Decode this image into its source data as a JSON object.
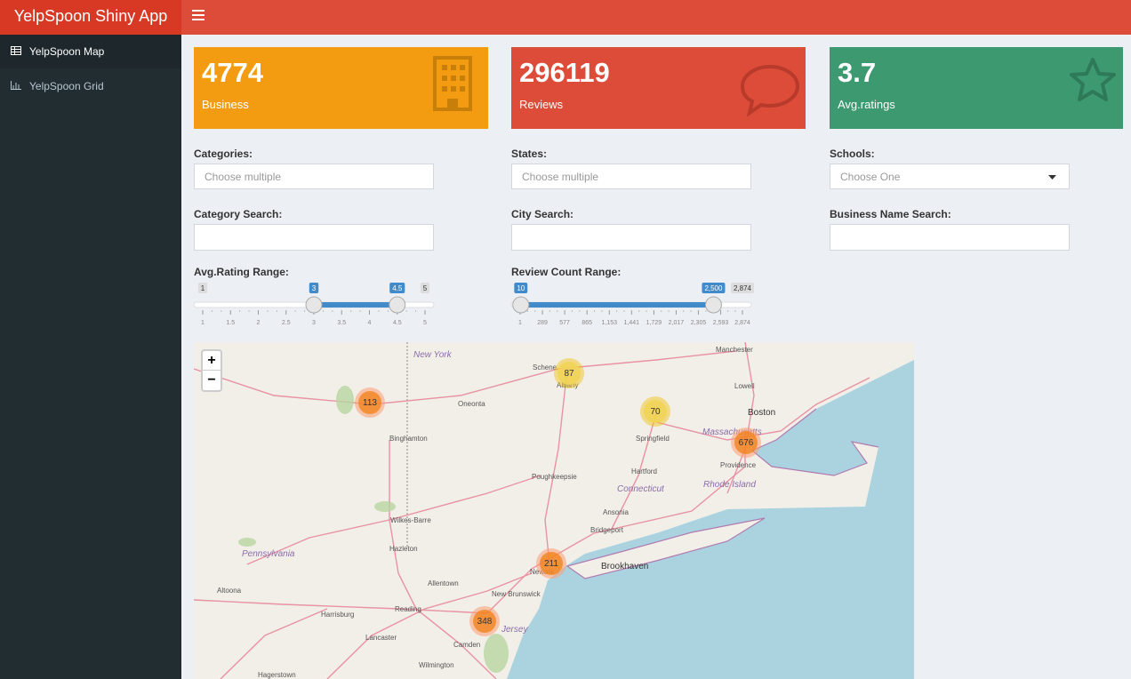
{
  "header": {
    "title": "YelpSpoon Shiny App"
  },
  "sidebar": {
    "items": [
      "YelpSpoon Map",
      "YelpSpoon Grid"
    ]
  },
  "value_boxes": [
    {
      "value": "4774",
      "label": "Business"
    },
    {
      "value": "296119",
      "label": "Reviews"
    },
    {
      "value": "3.7",
      "label": "Avg.ratings"
    }
  ],
  "inputs": [
    {
      "label": "Categories:",
      "placeholder": "Choose multiple"
    },
    {
      "label": "States:",
      "placeholder": "Choose multiple"
    },
    {
      "label": "Schools:",
      "placeholder": "Choose One"
    },
    {
      "label": "Category Search:"
    },
    {
      "label": "City Search:"
    },
    {
      "label": "Business Name Search:"
    }
  ],
  "sliders": [
    {
      "label": "Avg.Rating Range:",
      "min_label": 1,
      "max_label": 5,
      "from": 3,
      "to": 4.5,
      "ticks": [
        1,
        1.5,
        2,
        2.5,
        3,
        3.5,
        4,
        4.5,
        5
      ]
    },
    {
      "label": "Review Count Range:",
      "max_label": {
        "value": 2874,
        "label": "2,874"
      },
      "from": 10,
      "to": {
        "value": 2500,
        "label": "2,500"
      },
      "ticks": [
        1,
        289,
        577,
        865,
        {
          "value": 1153,
          "label": "1,153"
        },
        {
          "value": 1441,
          "label": "1,441"
        },
        {
          "value": 1729,
          "label": "1,729"
        },
        {
          "value": 2017,
          "label": "2,017"
        },
        {
          "value": 2305,
          "label": "2,305"
        },
        {
          "value": 2593,
          "label": "2,593"
        },
        {
          "value": 2874,
          "label": "2,874"
        }
      ]
    }
  ],
  "map": {
    "zoom_in": "+",
    "zoom_out": "−",
    "clusters": [
      "87",
      "113",
      "70",
      "676",
      "211",
      "348"
    ],
    "places": [
      "New York",
      "Oneonta",
      "Binghamton",
      "Schene",
      "Albany",
      "Springfield",
      "Manchester",
      "Lowell",
      "Boston",
      "Massachusetts",
      "Providence",
      "Rhode Island",
      "Hartford",
      "Connecticut",
      "Poughkeepsie",
      "Wilkes-Barre",
      "Hazleton",
      "Pennsylvania",
      "Ansonia",
      "Bridgeport",
      "Brookhaven",
      "Newark",
      "Allentown",
      "New Brunswick",
      "Altoona",
      "Harrisburg",
      "Reading",
      "Lancaster",
      "Jersey",
      "Camden",
      "Wilmington",
      "Hagerstown"
    ]
  }
}
